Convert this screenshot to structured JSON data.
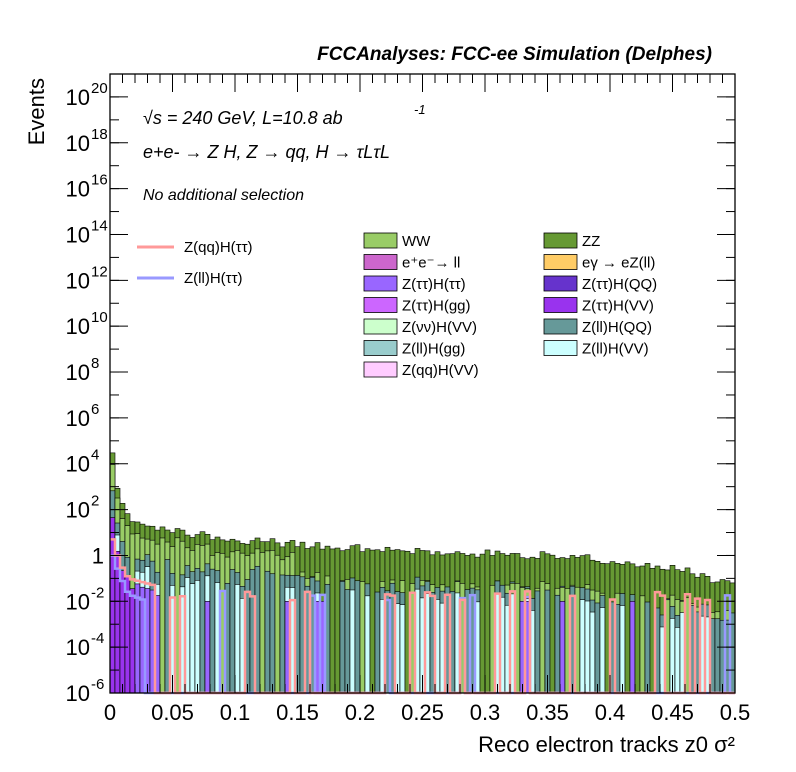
{
  "header": {
    "title": "FCCAnalyses: FCC-ee Simulation (Delphes)",
    "energy_line": "√s = 240 GeV, L=10.8 ab",
    "energy_sup": "-1",
    "process_line": "e+e- → Z H, Z → qq, H → τLτL",
    "selection": "No additional selection"
  },
  "chart_data": {
    "type": "bar",
    "title": "FCCAnalyses: FCC-ee Simulation (Delphes)",
    "xlabel": "Reco electron tracks z0 σ²",
    "ylabel": "Events",
    "xlim": [
      0,
      0.5
    ],
    "ylim": [
      1e-06,
      1e+21
    ],
    "yscale": "log",
    "x_ticks": [
      "0",
      "0.05",
      "0.1",
      "0.15",
      "0.2",
      "0.25",
      "0.3",
      "0.35",
      "0.4",
      "0.45",
      "0.5"
    ],
    "y_ticks": [
      {
        "base": "10",
        "exp": "-6",
        "value": 1e-06
      },
      {
        "base": "10",
        "exp": "-4",
        "value": 0.0001
      },
      {
        "base": "10",
        "exp": "-2",
        "value": 0.01
      },
      {
        "base": "1",
        "exp": "",
        "value": 1
      },
      {
        "base": "10",
        "exp": "2",
        "value": 100.0
      },
      {
        "base": "10",
        "exp": "4",
        "value": 10000.0
      },
      {
        "base": "10",
        "exp": "6",
        "value": 1000000.0
      },
      {
        "base": "10",
        "exp": "8",
        "value": 100000000.0
      },
      {
        "base": "10",
        "exp": "10",
        "value": 10000000000.0
      },
      {
        "base": "10",
        "exp": "12",
        "value": 1000000000000.0
      },
      {
        "base": "10",
        "exp": "14",
        "value": 100000000000000.0
      },
      {
        "base": "10",
        "exp": "16",
        "value": 1e+16
      },
      {
        "base": "10",
        "exp": "18",
        "value": 1e+18
      },
      {
        "base": "10",
        "exp": "20",
        "value": 1e+20
      }
    ],
    "legend_placement": "top-right",
    "stack_series": [
      {
        "name": "WW",
        "color": "#99cc66"
      },
      {
        "name": "ZZ",
        "color": "#669933"
      },
      {
        "name": "e⁺e⁻→ ll",
        "color": "#cc66cc"
      },
      {
        "name": "eγ → eZ(ll)",
        "color": "#ffcc66"
      },
      {
        "name": "Z(ττ)H(ττ)",
        "color": "#9966ff"
      },
      {
        "name": "Z(ττ)H(QQ)",
        "color": "#6633cc"
      },
      {
        "name": "Z(ττ)H(gg)",
        "color": "#cc66ff"
      },
      {
        "name": "Z(ττ)H(VV)",
        "color": "#9933ee"
      },
      {
        "name": "Z(νν)H(VV)",
        "color": "#ccffcc"
      },
      {
        "name": "Z(ll)H(QQ)",
        "color": "#669999"
      },
      {
        "name": "Z(ll)H(gg)",
        "color": "#99cccc"
      },
      {
        "name": "Z(ll)H(VV)",
        "color": "#ccffff"
      },
      {
        "name": "Z(qq)H(VV)",
        "color": "#ffccff"
      }
    ],
    "signal_series": [
      {
        "name": "Z(qq)H(ττ)",
        "color": "#ff9999"
      },
      {
        "name": "Z(ll)H(ττ)",
        "color": "#9999ff"
      }
    ],
    "total_background_approx": [
      {
        "x": 0.0025,
        "y": 30000
      },
      {
        "x": 0.0075,
        "y": 300
      },
      {
        "x": 0.015,
        "y": 50
      },
      {
        "x": 0.025,
        "y": 25
      },
      {
        "x": 0.05,
        "y": 12
      },
      {
        "x": 0.1,
        "y": 5
      },
      {
        "x": 0.15,
        "y": 3
      },
      {
        "x": 0.2,
        "y": 2
      },
      {
        "x": 0.25,
        "y": 1.5
      },
      {
        "x": 0.3,
        "y": 1.2
      },
      {
        "x": 0.35,
        "y": 1
      },
      {
        "x": 0.4,
        "y": 0.6
      },
      {
        "x": 0.45,
        "y": 0.3
      },
      {
        "x": 0.5,
        "y": 0.05
      }
    ],
    "zll_htautau_approx": [
      {
        "x": 0.0025,
        "y": 1
      },
      {
        "x": 0.0075,
        "y": 0.15
      },
      {
        "x": 0.015,
        "y": 0.02
      },
      {
        "x": 0.03,
        "y": 0.01
      }
    ],
    "zqq_htautau_approx": [
      {
        "x": 0.0025,
        "y": 5
      },
      {
        "x": 0.0075,
        "y": 0.5
      },
      {
        "x": 0.015,
        "y": 0.1
      },
      {
        "x": 0.035,
        "y": 0.05
      }
    ]
  }
}
